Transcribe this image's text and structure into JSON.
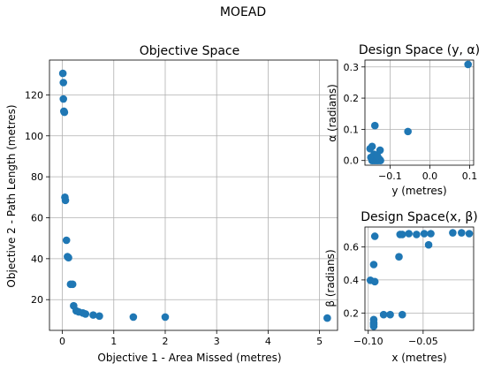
{
  "figure": {
    "suptitle": "MOEAD",
    "point_color": "#1f77b4"
  },
  "chart_data": [
    {
      "type": "scatter",
      "title": "Objective Space",
      "xlabel": "Objective 1 - Area Missed (metres)",
      "ylabel": "Objective 2 - Path Length (metres)",
      "xlim": [
        -0.25,
        5.35
      ],
      "ylim": [
        5,
        137
      ],
      "xticks": [
        0,
        1,
        2,
        3,
        4,
        5
      ],
      "yticks": [
        20,
        40,
        60,
        80,
        100,
        120
      ],
      "xtick_labels": [
        "0",
        "1",
        "2",
        "3",
        "4",
        "5"
      ],
      "ytick_labels": [
        "20",
        "40",
        "60",
        "80",
        "100",
        "120"
      ],
      "grid": true,
      "x": [
        0.01,
        0.02,
        0.02,
        0.03,
        0.04,
        0.05,
        0.06,
        0.08,
        0.1,
        0.12,
        0.16,
        0.2,
        0.22,
        0.27,
        0.32,
        0.4,
        0.45,
        0.6,
        0.72,
        1.38,
        2.0,
        5.15
      ],
      "y": [
        130.5,
        126,
        118,
        112,
        111.5,
        70,
        68.5,
        49,
        41,
        40.5,
        27.5,
        27.5,
        17,
        14.5,
        14,
        13.5,
        13,
        12.5,
        12,
        11.5,
        11.5,
        11
      ]
    },
    {
      "type": "scatter",
      "title": "Design Space (y, α)",
      "xlabel": "y (metres)",
      "ylabel": "α (radians)",
      "xlim": [
        -0.163,
        0.11
      ],
      "ylim": [
        -0.015,
        0.322
      ],
      "xticks": [
        -0.1,
        0.0,
        0.1
      ],
      "yticks": [
        0.0,
        0.1,
        0.2,
        0.3
      ],
      "xtick_labels": [
        "−0.1",
        "0.0",
        "0.1"
      ],
      "ytick_labels": [
        "0.0",
        "0.1",
        "0.2",
        "0.3"
      ],
      "grid": true,
      "x": [
        -0.15,
        -0.148,
        -0.145,
        -0.145,
        -0.142,
        -0.14,
        -0.14,
        -0.138,
        -0.136,
        -0.135,
        -0.133,
        -0.132,
        -0.13,
        -0.128,
        -0.126,
        -0.124,
        -0.138,
        -0.132,
        -0.125,
        -0.055,
        0.096
      ],
      "y": [
        0.038,
        0.01,
        0.0,
        0.045,
        0.005,
        0.0,
        0.02,
        0.002,
        0.01,
        0.0,
        0.005,
        0.002,
        0.0,
        0.006,
        0.003,
        0.0,
        0.112,
        0.015,
        0.033,
        0.093,
        0.308
      ]
    },
    {
      "type": "scatter",
      "title": "Design Space(x, β)",
      "xlabel": "x (metres)",
      "ylabel": "β (radians)",
      "xlim": [
        -0.103,
        -0.004
      ],
      "ylim": [
        0.095,
        0.72
      ],
      "xticks": [
        -0.1,
        -0.05
      ],
      "yticks": [
        0.2,
        0.4,
        0.6
      ],
      "xtick_labels": [
        "−0.10",
        "−0.05"
      ],
      "ytick_labels": [
        "0.2",
        "0.4",
        "0.6"
      ],
      "grid": true,
      "x": [
        -0.098,
        -0.095,
        -0.094,
        -0.094,
        -0.095,
        -0.095,
        -0.095,
        -0.095,
        -0.086,
        -0.08,
        -0.072,
        -0.071,
        -0.069,
        -0.069,
        -0.063,
        -0.056,
        -0.049,
        -0.045,
        -0.043,
        -0.023,
        -0.015,
        -0.008
      ],
      "y": [
        0.398,
        0.493,
        0.664,
        0.39,
        0.16,
        0.14,
        0.12,
        0.13,
        0.19,
        0.19,
        0.54,
        0.675,
        0.675,
        0.19,
        0.68,
        0.675,
        0.68,
        0.612,
        0.68,
        0.685,
        0.685,
        0.68
      ]
    }
  ]
}
